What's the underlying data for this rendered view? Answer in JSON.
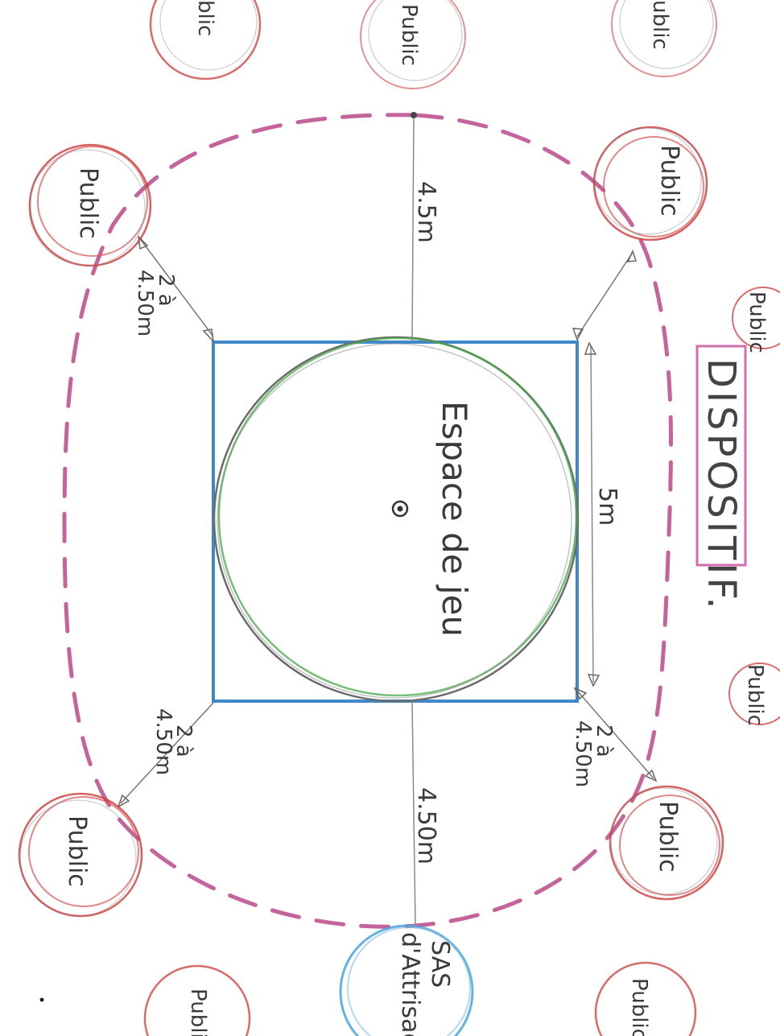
{
  "title": "DISPOSITIF.",
  "center_label": "Espace de jeu",
  "side_length": "5m",
  "distances": {
    "top": "4.5m",
    "bottom": "4.50m",
    "top_left": [
      "2 à",
      "4.50m"
    ],
    "bottom_left": [
      "2 à",
      "4.50m"
    ],
    "bottom_right": [
      "2 à",
      "4.50m"
    ]
  },
  "public_label": "Public",
  "public_partial": {
    "top_left": "blic",
    "top_center": "Public",
    "top_right": "ublic",
    "bottom_left": "Public",
    "bottom_right": "Public"
  },
  "sas": [
    "SAS",
    "d'Attrisage"
  ],
  "colors": {
    "square": "#3f87c9",
    "circle_green": "#4aa84a",
    "dashed_boundary": "#b0307a",
    "public_circle": "#cc3a3a",
    "sas_circle": "#4aa3d9",
    "title_underline": "#c44a9a"
  }
}
